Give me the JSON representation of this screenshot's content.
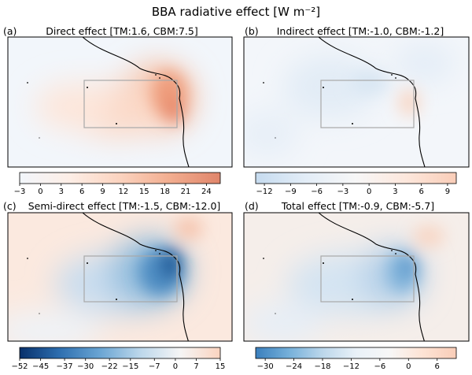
{
  "figure": {
    "title": "BBA radiative effect [W m⁻²]"
  },
  "chart_data": [
    {
      "type": "heatmap",
      "label": "(a)",
      "title": "Direct effect [TM:1.6, CBM:7.5]",
      "cmap": "red",
      "clim": [
        -3,
        26
      ],
      "colorbar_ticks": [
        -3,
        0,
        3,
        6,
        9,
        12,
        15,
        18,
        21,
        24
      ],
      "colorbar_colors": [
        "#f2f6fb",
        "#fdeee6",
        "#fbd3bf",
        "#f2ad8f",
        "#e0856a"
      ],
      "field": [
        {
          "lon": 2,
          "lat": 2,
          "value": 9
        },
        {
          "lon": 7,
          "lat": 3,
          "value": 18
        },
        {
          "lon": 9,
          "lat": 5,
          "value": 24
        },
        {
          "lon": 10,
          "lat": 0,
          "value": 22
        },
        {
          "lon": 12,
          "lat": 9,
          "value": 14
        },
        {
          "lon": 5,
          "lat": -6,
          "value": 8
        }
      ],
      "box": {
        "lon": [
          -5,
          10
        ],
        "lat": [
          -8,
          5
        ]
      }
    },
    {
      "type": "heatmap",
      "label": "(b)",
      "title": "Indirect effect [TM:-1.0, CBM:-1.2]",
      "cmap": "diverging",
      "clim": [
        -13,
        10
      ],
      "colorbar_ticks": [
        -12,
        -9,
        -6,
        -3,
        0,
        3,
        6,
        9
      ],
      "colorbar_colors": [
        "#c6dbef",
        "#e3edf7",
        "#f7f7f7",
        "#fde7dc",
        "#f9cdb8"
      ],
      "field": [
        {
          "lon": 8,
          "lat": 0,
          "value": 4
        },
        {
          "lon": 3,
          "lat": 6,
          "value": -3
        },
        {
          "lon": -5,
          "lat": 2,
          "value": -2
        },
        {
          "lon": 10,
          "lat": 10,
          "value": -2
        }
      ],
      "box": {
        "lon": [
          -5,
          10
        ],
        "lat": [
          -8,
          5
        ]
      }
    },
    {
      "type": "heatmap",
      "label": "(c)",
      "title": "Semi-direct effect [TM:-1.5, CBM:-12.0]",
      "cmap": "diverging",
      "clim": [
        -52,
        15
      ],
      "colorbar_ticks": [
        -52,
        -45,
        -37,
        -30,
        -22,
        -15,
        -7,
        0,
        7,
        15
      ],
      "colorbar_colors": [
        "#08306b",
        "#2e6fb0",
        "#6aa5d3",
        "#bcd7eb",
        "#f5f5f5",
        "#fbd3bf"
      ],
      "field": [
        {
          "lon": 9,
          "lat": 1,
          "value": -45
        },
        {
          "lon": 6,
          "lat": 3,
          "value": -30
        },
        {
          "lon": 2,
          "lat": 0,
          "value": -15
        },
        {
          "lon": -8,
          "lat": -2,
          "value": -10
        },
        {
          "lon": -15,
          "lat": 12,
          "value": 5
        }
      ],
      "box": {
        "lon": [
          -5,
          10
        ],
        "lat": [
          -8,
          5
        ]
      }
    },
    {
      "type": "heatmap",
      "label": "(d)",
      "title": "Total effect [TM:-0.9, CBM:-5.7]",
      "cmap": "diverging",
      "clim": [
        -32,
        10
      ],
      "colorbar_ticks": [
        -30,
        -24,
        -18,
        -12,
        -6,
        0,
        6
      ],
      "colorbar_colors": [
        "#3a7fbd",
        "#76b0da",
        "#bcd7eb",
        "#e9f1f8",
        "#f7f7f7",
        "#fde3d4",
        "#f9cdb8"
      ],
      "field": [
        {
          "lon": 9,
          "lat": 1,
          "value": -22
        },
        {
          "lon": 4,
          "lat": 2,
          "value": -12
        },
        {
          "lon": -4,
          "lat": -2,
          "value": -8
        },
        {
          "lon": -15,
          "lat": 12,
          "value": 2
        }
      ],
      "box": {
        "lon": [
          -5,
          10
        ],
        "lat": [
          -8,
          5
        ]
      }
    }
  ]
}
